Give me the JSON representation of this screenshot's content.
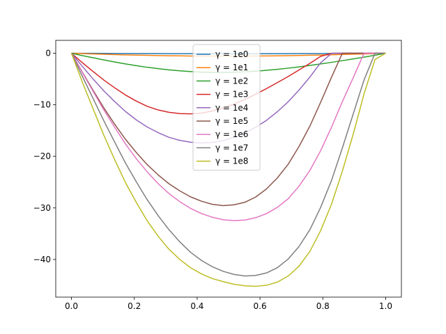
{
  "chart_data": {
    "type": "line",
    "title": "",
    "xlabel": "",
    "ylabel": "",
    "xlim": [
      -0.05,
      1.05
    ],
    "ylim": [
      -47.3,
      2.5
    ],
    "grid": false,
    "legend_position": "top-center",
    "x_ticks": [
      0.0,
      0.2,
      0.4,
      0.6,
      0.8,
      1.0
    ],
    "x_tick_labels": [
      "0.0",
      "0.2",
      "0.4",
      "0.6",
      "0.8",
      "1.0"
    ],
    "y_ticks": [
      0,
      -10,
      -20,
      -30,
      -40
    ],
    "y_tick_labels": [
      "0",
      "−10",
      "−20",
      "−30",
      "−40"
    ],
    "x": [
      0.0,
      0.034,
      0.069,
      0.103,
      0.138,
      0.172,
      0.207,
      0.241,
      0.276,
      0.31,
      0.345,
      0.379,
      0.414,
      0.448,
      0.483,
      0.517,
      0.552,
      0.586,
      0.621,
      0.655,
      0.69,
      0.724,
      0.759,
      0.793,
      0.828,
      0.862,
      0.897,
      0.931,
      0.966,
      1.0
    ],
    "series": [
      {
        "name": "γ = 1e0",
        "color": "#1f77b4",
        "values": [
          0,
          -0.01,
          -0.02,
          -0.03,
          -0.04,
          -0.05,
          -0.06,
          -0.07,
          -0.07,
          -0.08,
          -0.08,
          -0.08,
          -0.09,
          -0.09,
          -0.09,
          -0.09,
          -0.09,
          -0.09,
          -0.08,
          -0.08,
          -0.08,
          -0.07,
          -0.07,
          -0.06,
          -0.05,
          -0.04,
          -0.04,
          -0.03,
          -0.01,
          0
        ]
      },
      {
        "name": "γ = 1e1",
        "color": "#ff7f0e",
        "values": [
          0,
          -0.07,
          -0.14,
          -0.2,
          -0.26,
          -0.32,
          -0.37,
          -0.41,
          -0.45,
          -0.48,
          -0.51,
          -0.53,
          -0.55,
          -0.56,
          -0.56,
          -0.56,
          -0.55,
          -0.54,
          -0.52,
          -0.5,
          -0.47,
          -0.43,
          -0.39,
          -0.35,
          -0.3,
          -0.24,
          -0.19,
          -0.13,
          -0.06,
          0
        ]
      },
      {
        "name": "γ = 1e2",
        "color": "#2ca02c",
        "values": [
          0,
          -0.45,
          -0.88,
          -1.3,
          -1.7,
          -2.07,
          -2.41,
          -2.72,
          -2.99,
          -3.22,
          -3.41,
          -3.55,
          -3.65,
          -3.7,
          -3.71,
          -3.67,
          -3.59,
          -3.47,
          -3.31,
          -3.12,
          -2.89,
          -2.64,
          -2.36,
          -2.07,
          -1.76,
          -1.44,
          -1.1,
          -0.76,
          -0.39,
          0
        ]
      },
      {
        "name": "γ = 1e3",
        "color": "#d62728",
        "values": [
          0,
          -1.8,
          -3.55,
          -5.2,
          -6.72,
          -8.1,
          -9.3,
          -10.3,
          -11.0,
          -11.45,
          -11.7,
          -11.75,
          -11.6,
          -11.2,
          -10.6,
          -9.85,
          -8.95,
          -7.95,
          -6.85,
          -5.7,
          -4.5,
          -3.25,
          -1.95,
          -0.6,
          0,
          0,
          0,
          0,
          0,
          0
        ]
      },
      {
        "name": "γ = 1e4",
        "color": "#9467bd",
        "values": [
          0,
          -2.5,
          -5.0,
          -7.3,
          -9.4,
          -11.3,
          -12.95,
          -14.3,
          -15.4,
          -16.3,
          -16.9,
          -17.25,
          -17.4,
          -17.3,
          -16.95,
          -16.3,
          -15.45,
          -14.35,
          -13.0,
          -11.35,
          -9.4,
          -7.15,
          -4.6,
          -1.85,
          0,
          0,
          0,
          0,
          0,
          0
        ]
      },
      {
        "name": "γ = 1e5",
        "color": "#8c564b",
        "values": [
          0,
          -3.6,
          -7.2,
          -10.6,
          -13.8,
          -16.7,
          -19.3,
          -21.6,
          -23.6,
          -25.3,
          -26.7,
          -27.85,
          -28.7,
          -29.3,
          -29.55,
          -29.4,
          -28.9,
          -27.9,
          -26.3,
          -24.2,
          -21.5,
          -18.1,
          -14.1,
          -9.5,
          -4.6,
          0,
          0,
          0,
          0,
          0
        ]
      },
      {
        "name": "γ = 1e6",
        "color": "#e377c2",
        "values": [
          0,
          -3.7,
          -7.4,
          -11.0,
          -14.4,
          -17.6,
          -20.5,
          -23.0,
          -25.3,
          -27.2,
          -28.8,
          -30.1,
          -31.1,
          -31.8,
          -32.3,
          -32.45,
          -32.35,
          -31.9,
          -31.1,
          -29.9,
          -28.2,
          -25.8,
          -22.7,
          -18.9,
          -14.3,
          -9.4,
          -4.7,
          0,
          0,
          0
        ]
      },
      {
        "name": "γ = 1e7",
        "color": "#7f7f7f",
        "values": [
          0,
          -4.4,
          -8.8,
          -13.1,
          -17.3,
          -21.3,
          -25.0,
          -28.4,
          -31.5,
          -34.2,
          -36.6,
          -38.6,
          -40.2,
          -41.4,
          -42.3,
          -42.9,
          -43.2,
          -43.1,
          -42.6,
          -41.6,
          -39.9,
          -37.5,
          -34.2,
          -29.9,
          -24.6,
          -18.4,
          -11.7,
          -5.2,
          0,
          0
        ]
      },
      {
        "name": "γ = 1e8",
        "color": "#bcbd22",
        "values": [
          0,
          -5.5,
          -10.8,
          -15.9,
          -20.7,
          -25.1,
          -29.0,
          -32.5,
          -35.5,
          -38.0,
          -40.0,
          -41.6,
          -42.8,
          -43.7,
          -44.3,
          -44.8,
          -45.1,
          -45.2,
          -45.0,
          -44.4,
          -43.2,
          -41.3,
          -38.4,
          -34.4,
          -29.2,
          -22.9,
          -15.6,
          -7.9,
          -1.2,
          0
        ]
      }
    ]
  }
}
